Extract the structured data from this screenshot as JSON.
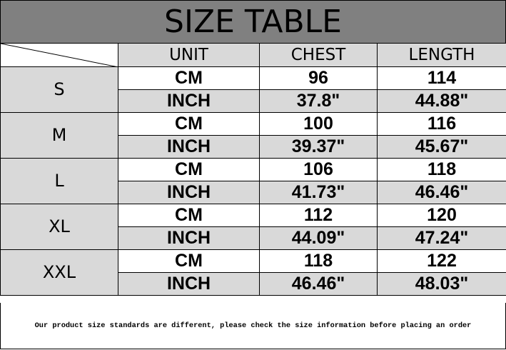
{
  "title": "SIZE TABLE",
  "headers": [
    "UNIT",
    "CHEST",
    "LENGTH"
  ],
  "rows": [
    {
      "size": "S",
      "cm": {
        "unit": "CM",
        "chest": "96",
        "length": "114"
      },
      "inch": {
        "unit": "INCH",
        "chest": "37.8\"",
        "length": "44.88\""
      }
    },
    {
      "size": "M",
      "cm": {
        "unit": "CM",
        "chest": "100",
        "length": "116"
      },
      "inch": {
        "unit": "INCH",
        "chest": "39.37\"",
        "length": "45.67\""
      }
    },
    {
      "size": "L",
      "cm": {
        "unit": "CM",
        "chest": "106",
        "length": "118"
      },
      "inch": {
        "unit": "INCH",
        "chest": "41.73\"",
        "length": "46.46\""
      }
    },
    {
      "size": "XL",
      "cm": {
        "unit": "CM",
        "chest": "112",
        "length": "120"
      },
      "inch": {
        "unit": "INCH",
        "chest": "44.09\"",
        "length": "47.24\""
      }
    },
    {
      "size": "XXL",
      "cm": {
        "unit": "CM",
        "chest": "118",
        "length": "122"
      },
      "inch": {
        "unit": "INCH",
        "chest": "46.46\"",
        "length": "48.03\""
      }
    }
  ],
  "footer": "Our product size standards are different, please check the size information before placing an order",
  "colors": {
    "title_bg": "#808080",
    "cell_gray": "#d9d9d9"
  }
}
